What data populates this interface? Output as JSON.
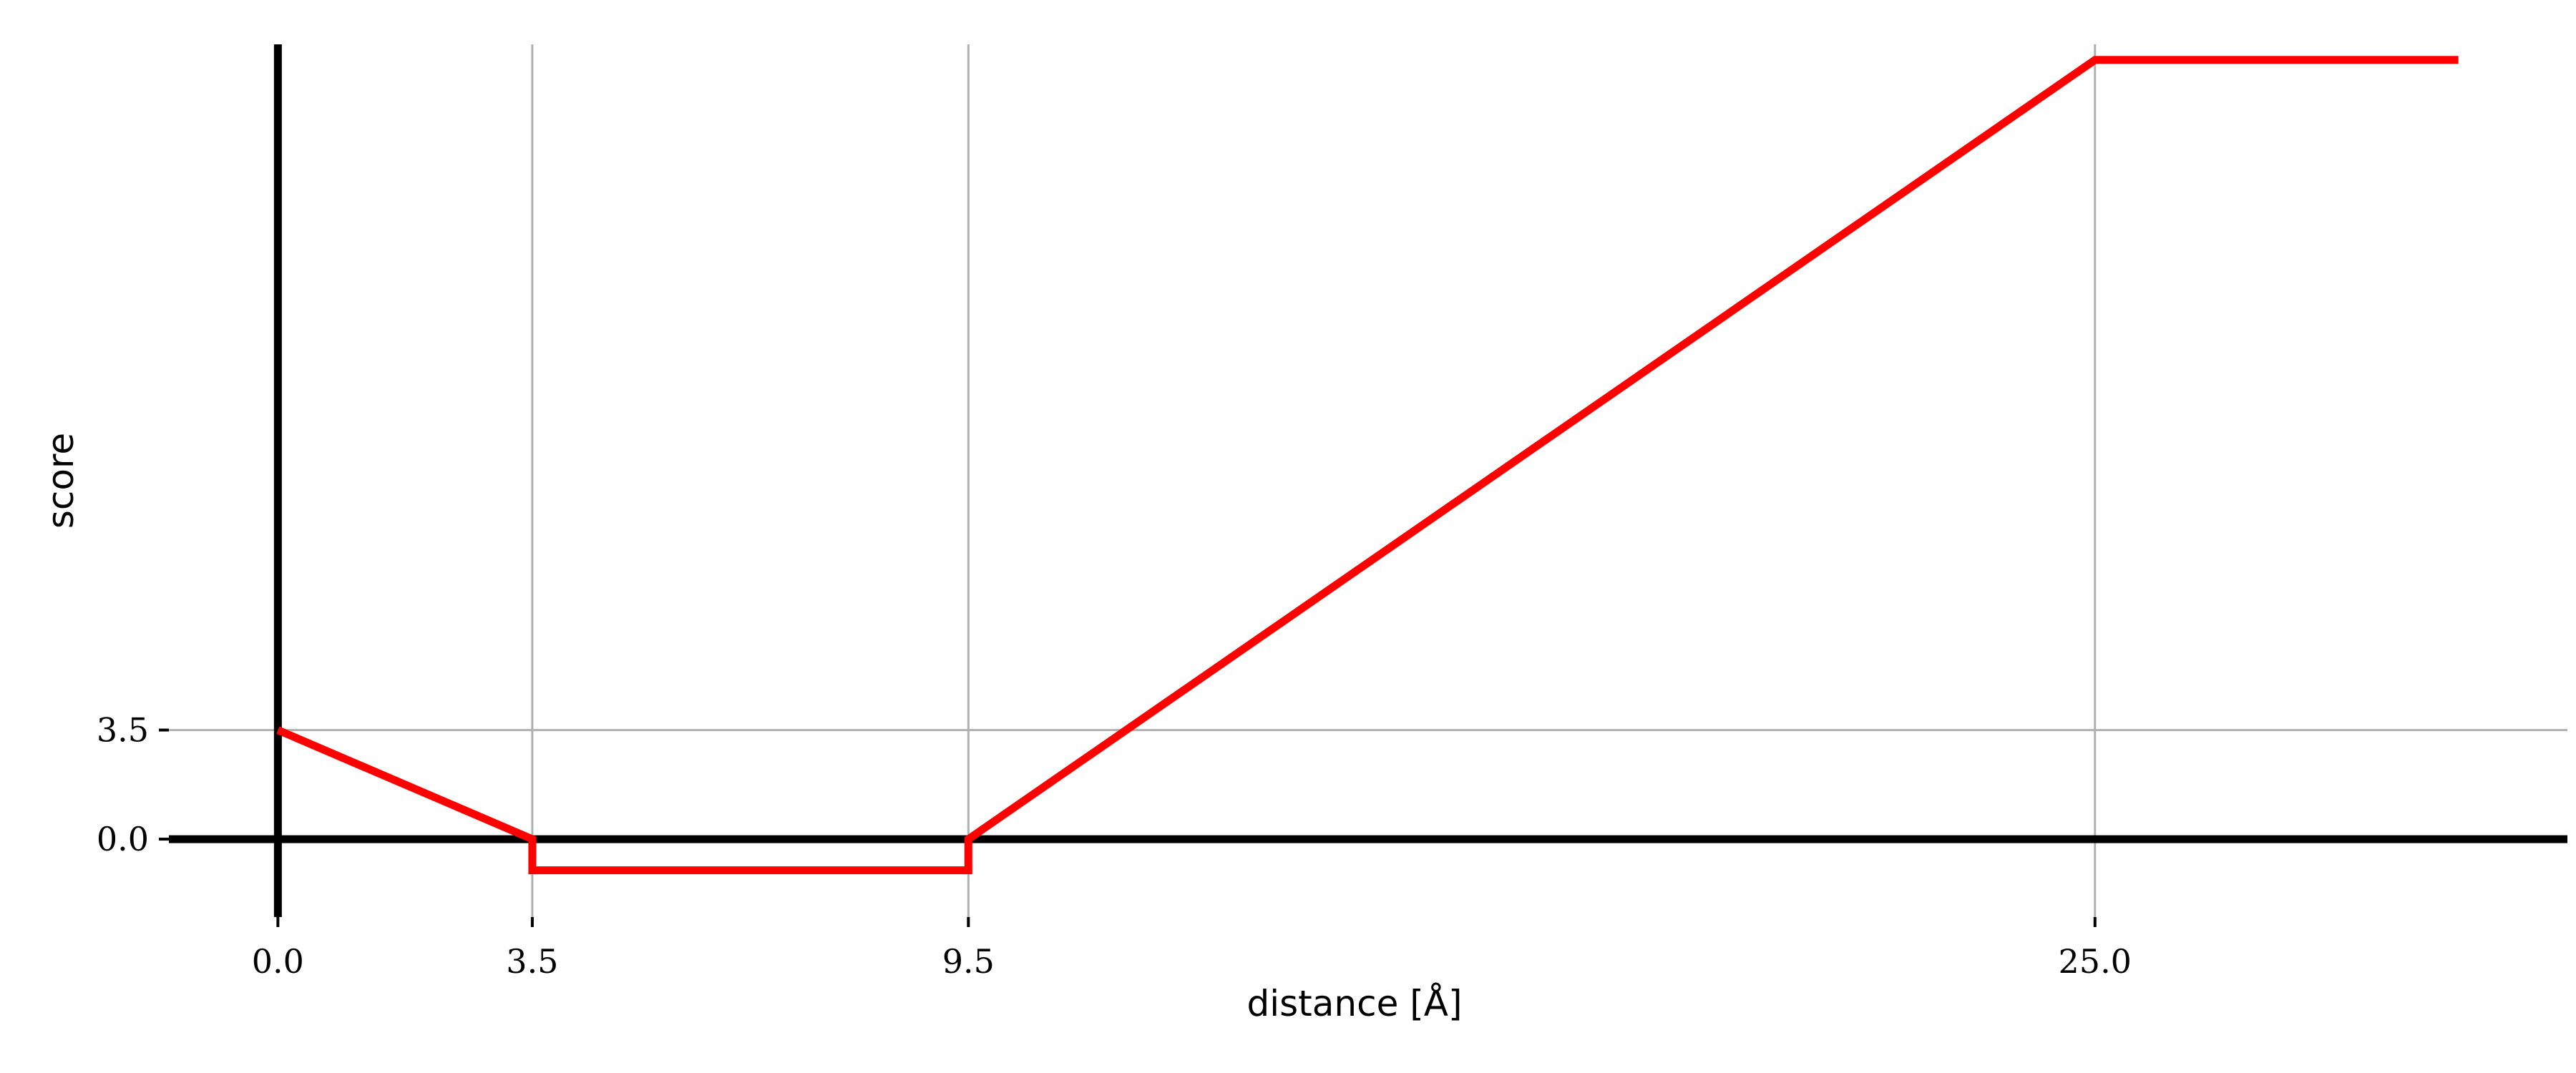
{
  "chart_data": {
    "type": "line",
    "title": "",
    "xlabel": "distance [Å]",
    "ylabel": "score",
    "xlim": [
      -1.5,
      31.5
    ],
    "ylim": [
      -2.5,
      25.5
    ],
    "xticks": [
      {
        "value": 0.0,
        "label": "0.0"
      },
      {
        "value": 3.5,
        "label": "3.5"
      },
      {
        "value": 9.5,
        "label": "9.5"
      },
      {
        "value": 25.0,
        "label": "25.0"
      }
    ],
    "yticks": [
      {
        "value": 0.0,
        "label": "0.0"
      },
      {
        "value": 3.5,
        "label": "3.5"
      }
    ],
    "grid": true,
    "series": [
      {
        "color": "#ff0000",
        "x": [
          0.0,
          3.5,
          3.5,
          9.5,
          9.5,
          25.0,
          30.0
        ],
        "y": [
          3.5,
          0.0,
          -1.0,
          -1.0,
          0.0,
          25.0,
          25.0
        ]
      }
    ],
    "colors": {
      "line": "#ff0000",
      "axis": "#000000",
      "grid": "#b0b0b0"
    }
  }
}
